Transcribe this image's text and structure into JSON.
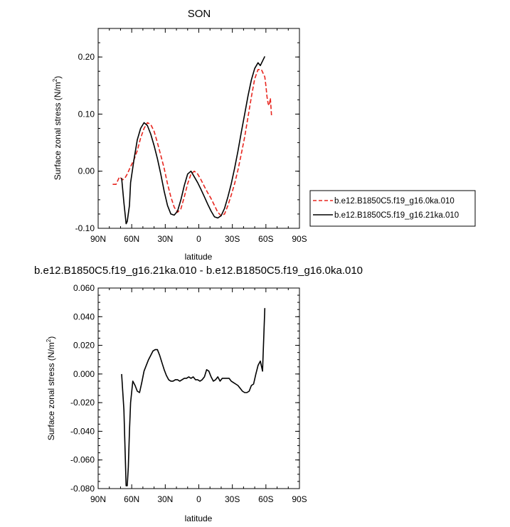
{
  "colors": {
    "series_control": "#e8261f",
    "series_exp": "#000000",
    "axis": "#000000",
    "background": "#ffffff"
  },
  "chart_data": [
    {
      "type": "line",
      "title": "SON",
      "xlabel": "latitude",
      "ylabel": "Surface zonal stress (N/m²)",
      "ylabel_text": "Surface zonal stress (N/m",
      "ylabel_sup": "2",
      "ylabel_close": ")",
      "xlim": [
        90,
        -90
      ],
      "ylim": [
        -0.1,
        0.25
      ],
      "x_ticks": [
        90,
        60,
        30,
        0,
        -30,
        -60,
        -90
      ],
      "x_ticklabels": [
        "90N",
        "60N",
        "30N",
        "0",
        "30S",
        "60S",
        "90S"
      ],
      "y_ticks": [
        -0.1,
        0.0,
        0.1,
        0.2
      ],
      "y_ticklabels": [
        "-0.10",
        "0.00",
        "0.10",
        "0.20"
      ],
      "legend_position": "right",
      "series": [
        {
          "name": "b.e12.B1850C5.f19_g16.0ka.010",
          "style": "dashed",
          "color": "#e8261f",
          "x": [
            77,
            74,
            71,
            68,
            66,
            64,
            61,
            58,
            55,
            52,
            49,
            46,
            43,
            40,
            37,
            34,
            31,
            28,
            25,
            22,
            19,
            16,
            13,
            10,
            7,
            4,
            1,
            -2,
            -5,
            -8,
            -11,
            -14,
            -17,
            -20,
            -23,
            -26,
            -29,
            -32,
            -35,
            -38,
            -41,
            -44,
            -47,
            -50,
            -53,
            -56,
            -59,
            -60,
            -61,
            -62,
            -63,
            -64,
            -65
          ],
          "y": [
            -0.023,
            -0.023,
            -0.01,
            -0.015,
            -0.012,
            -0.005,
            0.008,
            0.02,
            0.036,
            0.058,
            0.075,
            0.085,
            0.082,
            0.07,
            0.05,
            0.028,
            0.005,
            -0.022,
            -0.045,
            -0.063,
            -0.072,
            -0.066,
            -0.045,
            -0.022,
            -0.005,
            0.0,
            -0.005,
            -0.015,
            -0.027,
            -0.038,
            -0.048,
            -0.06,
            -0.072,
            -0.078,
            -0.075,
            -0.06,
            -0.042,
            -0.022,
            0.002,
            0.03,
            0.06,
            0.095,
            0.13,
            0.162,
            0.178,
            0.178,
            0.165,
            0.15,
            0.13,
            0.118,
            0.115,
            0.128,
            0.098
          ]
        },
        {
          "name": "b.e12.B1850C5.f19_g16.21ka.010",
          "style": "solid",
          "color": "#000000",
          "x": [
            69,
            67,
            65,
            64,
            62,
            61,
            58,
            55,
            52,
            49,
            46,
            43,
            40,
            37,
            34,
            31,
            28,
            25,
            22,
            19,
            16,
            13,
            10,
            7,
            4,
            1,
            -2,
            -5,
            -8,
            -11,
            -14,
            -17,
            -20,
            -23,
            -26,
            -29,
            -32,
            -35,
            -38,
            -41,
            -44,
            -47,
            -50,
            -53,
            -55,
            -57,
            -59
          ],
          "y": [
            -0.012,
            -0.055,
            -0.092,
            -0.088,
            -0.06,
            -0.02,
            0.02,
            0.055,
            0.075,
            0.085,
            0.08,
            0.065,
            0.045,
            0.022,
            -0.005,
            -0.035,
            -0.06,
            -0.075,
            -0.077,
            -0.07,
            -0.05,
            -0.025,
            -0.005,
            0.0,
            -0.01,
            -0.02,
            -0.032,
            -0.045,
            -0.058,
            -0.07,
            -0.08,
            -0.082,
            -0.078,
            -0.065,
            -0.045,
            -0.022,
            0.005,
            0.035,
            0.068,
            0.1,
            0.132,
            0.16,
            0.18,
            0.19,
            0.185,
            0.193,
            0.201
          ]
        }
      ]
    },
    {
      "type": "line",
      "title": "b.e12.B1850C5.f19_g16.21ka.010 - b.e12.B1850C5.f19_g16.0ka.010",
      "xlabel": "latitude",
      "ylabel": "Surface zonal stress (N/m²)",
      "ylabel_text": "Surface zonal stress (N/m",
      "ylabel_sup": "2",
      "ylabel_close": ")",
      "xlim": [
        90,
        -90
      ],
      "ylim": [
        -0.08,
        0.06
      ],
      "x_ticks": [
        90,
        60,
        30,
        0,
        -30,
        -60,
        -90
      ],
      "x_ticklabels": [
        "90N",
        "60N",
        "30N",
        "0",
        "30S",
        "60S",
        "90S"
      ],
      "y_ticks": [
        -0.08,
        -0.06,
        -0.04,
        -0.02,
        0.0,
        0.02,
        0.04,
        0.06
      ],
      "y_ticklabels": [
        "-0.080",
        "-0.060",
        "-0.040",
        "-0.020",
        "0.000",
        "0.020",
        "0.040",
        "0.060"
      ],
      "series": [
        {
          "style": "solid",
          "color": "#000000",
          "x": [
            69,
            67,
            65,
            64,
            63,
            62,
            61,
            59,
            57,
            55,
            53,
            51,
            49,
            47,
            45,
            43,
            41,
            39,
            37,
            35,
            33,
            31,
            29,
            27,
            25,
            23,
            21,
            19,
            17,
            15,
            13,
            11,
            9,
            7,
            5,
            3,
            1,
            -1,
            -3,
            -5,
            -7,
            -9,
            -11,
            -13,
            -15,
            -17,
            -19,
            -21,
            -23,
            -25,
            -27,
            -29,
            -31,
            -33,
            -35,
            -37,
            -39,
            -41,
            -43,
            -45,
            -47,
            -49,
            -51,
            -53,
            -55,
            -57,
            -59
          ],
          "y": [
            0.0,
            -0.025,
            -0.078,
            -0.078,
            -0.065,
            -0.04,
            -0.02,
            -0.005,
            -0.008,
            -0.012,
            -0.013,
            -0.006,
            0.002,
            0.006,
            0.01,
            0.013,
            0.016,
            0.017,
            0.017,
            0.013,
            0.008,
            0.003,
            -0.001,
            -0.004,
            -0.005,
            -0.005,
            -0.004,
            -0.004,
            -0.005,
            -0.004,
            -0.003,
            -0.003,
            -0.002,
            -0.003,
            -0.002,
            -0.004,
            -0.004,
            -0.005,
            -0.004,
            -0.002,
            0.003,
            0.002,
            -0.002,
            -0.005,
            -0.004,
            -0.002,
            -0.005,
            -0.003,
            -0.003,
            -0.003,
            -0.003,
            -0.005,
            -0.006,
            -0.007,
            -0.008,
            -0.01,
            -0.012,
            -0.013,
            -0.013,
            -0.012,
            -0.008,
            -0.007,
            0.0,
            0.006,
            0.009,
            0.002,
            0.046
          ]
        }
      ]
    }
  ],
  "legend": [
    {
      "label": "b.e12.B1850C5.f19_g16.0ka.010"
    },
    {
      "label": "b.e12.B1850C5.f19_g16.21ka.010"
    }
  ]
}
